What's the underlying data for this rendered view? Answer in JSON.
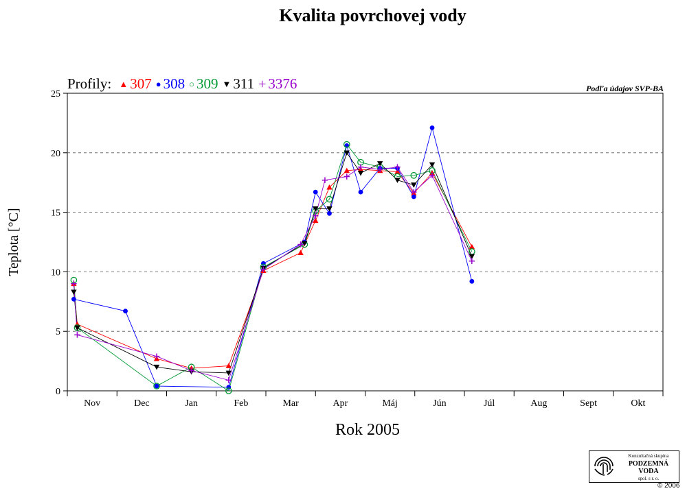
{
  "page": {
    "title": "Kvalita povrchovej vody",
    "source_note": "Podľa údajov SVP-BA",
    "legend_prefix": "Profily:",
    "logo": {
      "line1": "Konzultačná skupina",
      "line2": "PODZEMNÁ VODA",
      "line3": "spol. s r. o."
    },
    "copyright": "© 2006"
  },
  "chart_data": {
    "type": "line",
    "title": "Kvalita povrchovej vody",
    "xlabel": "Rok 2005",
    "ylabel": "Teplota [°C]",
    "ylim": [
      0,
      25
    ],
    "yticks": [
      0,
      5,
      10,
      15,
      20,
      25
    ],
    "categories": [
      "Nov",
      "Dec",
      "Jan",
      "Feb",
      "Mar",
      "Apr",
      "Máj",
      "Jún",
      "Júl",
      "Aug",
      "Sept",
      "Okt"
    ],
    "x_unit": "months from start of Nov (month index)",
    "grid": "horizontal dashed",
    "legend_position": "top-left",
    "series": [
      {
        "name": "307",
        "color": "#ff0000",
        "marker": "triangle-up",
        "points": [
          [
            0.13,
            9.0
          ],
          [
            0.2,
            5.6
          ],
          [
            1.8,
            2.7
          ],
          [
            2.5,
            1.9
          ],
          [
            3.25,
            2.1
          ],
          [
            3.95,
            10.1
          ],
          [
            4.7,
            11.6
          ],
          [
            5,
            14.3
          ],
          [
            5.28,
            17.1
          ],
          [
            5.63,
            18.5
          ],
          [
            5.91,
            18.6
          ],
          [
            6.3,
            18.5
          ],
          [
            6.65,
            18.4
          ],
          [
            6.98,
            16.6
          ],
          [
            7.35,
            18.3
          ],
          [
            8.15,
            12.1
          ]
        ]
      },
      {
        "name": "308",
        "color": "#0000ff",
        "marker": "circle",
        "points": [
          [
            0.13,
            7.7
          ],
          [
            1.17,
            6.7
          ],
          [
            1.8,
            0.4
          ],
          [
            3.25,
            0.3
          ],
          [
            3.95,
            10.7
          ],
          [
            4.78,
            12.5
          ],
          [
            5,
            16.7
          ],
          [
            5.28,
            14.9
          ],
          [
            5.63,
            20.6
          ],
          [
            5.91,
            16.7
          ],
          [
            6.3,
            18.7
          ],
          [
            6.65,
            18.7
          ],
          [
            6.98,
            16.3
          ],
          [
            7.35,
            22.1
          ],
          [
            8.15,
            9.2
          ]
        ]
      },
      {
        "name": "309",
        "color": "#009933",
        "marker": "circle-open",
        "points": [
          [
            0.13,
            9.3
          ],
          [
            0.2,
            5.3
          ],
          [
            1.8,
            0.4
          ],
          [
            2.5,
            2.0
          ],
          [
            3.25,
            0
          ],
          [
            3.95,
            10.4
          ],
          [
            4.78,
            12.3
          ],
          [
            5,
            15.1
          ],
          [
            5.28,
            16.1
          ],
          [
            5.63,
            20.7
          ],
          [
            5.91,
            19.2
          ],
          [
            6.3,
            18.8
          ],
          [
            6.65,
            18.0
          ],
          [
            6.98,
            18.1
          ],
          [
            7.35,
            18.5
          ],
          [
            8.15,
            11.7
          ]
        ]
      },
      {
        "name": "311",
        "color": "#000000",
        "marker": "triangle-down",
        "points": [
          [
            0.13,
            8.3
          ],
          [
            0.2,
            5.3
          ],
          [
            1.8,
            2.0
          ],
          [
            2.5,
            1.6
          ],
          [
            3.25,
            1.5
          ],
          [
            3.95,
            10.3
          ],
          [
            4.78,
            12.4
          ],
          [
            5,
            15.3
          ],
          [
            5.28,
            15.3
          ],
          [
            5.63,
            20.0
          ],
          [
            5.91,
            18.3
          ],
          [
            6.3,
            19.1
          ],
          [
            6.65,
            17.7
          ],
          [
            6.98,
            17.3
          ],
          [
            7.35,
            19.0
          ],
          [
            8.15,
            11.3
          ]
        ]
      },
      {
        "name": "3376",
        "color": "#9900cc",
        "marker": "plus",
        "points": [
          [
            0.13,
            9.0
          ],
          [
            0.2,
            4.7
          ],
          [
            1.8,
            2.9
          ],
          [
            2.5,
            1.7
          ],
          [
            3.25,
            0.9
          ],
          [
            3.95,
            10.2
          ],
          [
            4.7,
            12.3
          ],
          [
            5,
            14.7
          ],
          [
            5.19,
            17.7
          ],
          [
            5.63,
            18.0
          ],
          [
            5.91,
            18.8
          ],
          [
            6.3,
            18.6
          ],
          [
            6.65,
            18.8
          ],
          [
            6.98,
            16.7
          ],
          [
            7.35,
            18.1
          ],
          [
            8.15,
            10.9
          ]
        ]
      }
    ]
  }
}
